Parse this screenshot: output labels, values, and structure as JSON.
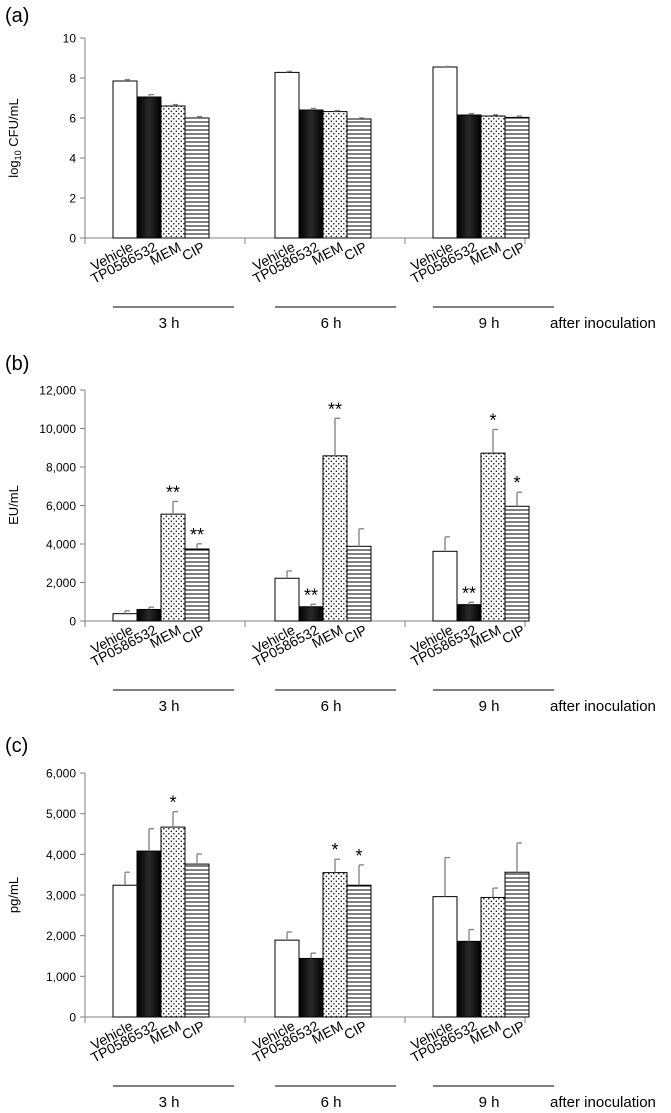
{
  "patterns": {
    "vehicle": "white",
    "tp0586532": "black",
    "mem": "dots",
    "cip": "hlines"
  },
  "colors": {
    "axis": "#808080",
    "bar_border": "#000000",
    "error_bar": "#808080"
  },
  "chart_data": [
    {
      "panel_label": "(a)",
      "type": "bar",
      "ylabel": "log10 CFU/mL",
      "ylabel_main": "log",
      "ylabel_sub": "10",
      "ylabel_tail": " CFU/mL",
      "ylim": [
        0,
        10
      ],
      "yticks": [
        0,
        2,
        4,
        6,
        8,
        10
      ],
      "ytick_labels": [
        "0",
        "2",
        "4",
        "6",
        "8",
        "10"
      ],
      "categories": [
        "3 h",
        "6 h",
        "9 h"
      ],
      "bar_labels": [
        "Vehicle",
        "TP0586532",
        "MEM",
        "CIP"
      ],
      "after_label": "after inoculation",
      "series": [
        {
          "name": "Vehicle",
          "values": [
            7.85,
            8.28,
            8.55
          ],
          "errors": [
            0.07,
            0.05,
            0.03
          ],
          "stars": [
            "",
            "",
            ""
          ]
        },
        {
          "name": "TP0586532",
          "values": [
            7.05,
            6.4,
            6.15
          ],
          "errors": [
            0.12,
            0.08,
            0.07
          ],
          "stars": [
            "",
            "",
            ""
          ]
        },
        {
          "name": "MEM",
          "values": [
            6.6,
            6.32,
            6.1
          ],
          "errors": [
            0.07,
            0.05,
            0.06
          ],
          "stars": [
            "",
            "",
            ""
          ]
        },
        {
          "name": "CIP",
          "values": [
            6.0,
            5.95,
            6.03
          ],
          "errors": [
            0.07,
            0.05,
            0.07
          ],
          "stars": [
            "",
            "",
            ""
          ]
        }
      ]
    },
    {
      "panel_label": "(b)",
      "type": "bar",
      "ylabel": "EU/mL",
      "ylabel_main": "EU/mL",
      "ylabel_sub": "",
      "ylabel_tail": "",
      "ylim": [
        0,
        12000
      ],
      "yticks": [
        0,
        2000,
        4000,
        6000,
        8000,
        10000,
        12000
      ],
      "ytick_labels": [
        "0",
        "2,000",
        "4,000",
        "6,000",
        "8,000",
        "10,000",
        "12,000"
      ],
      "categories": [
        "3 h",
        "6 h",
        "9 h"
      ],
      "bar_labels": [
        "Vehicle",
        "TP0586532",
        "MEM",
        "CIP"
      ],
      "after_label": "after inoculation",
      "series": [
        {
          "name": "Vehicle",
          "values": [
            380,
            2220,
            3620
          ],
          "errors": [
            150,
            380,
            750
          ],
          "stars": [
            "",
            "",
            ""
          ]
        },
        {
          "name": "TP0586532",
          "values": [
            600,
            740,
            850
          ],
          "errors": [
            120,
            130,
            120
          ],
          "stars": [
            "",
            "**",
            "**"
          ]
        },
        {
          "name": "MEM",
          "values": [
            5550,
            8580,
            8720
          ],
          "errors": [
            660,
            1950,
            1230
          ],
          "stars": [
            "**",
            "**",
            "*"
          ]
        },
        {
          "name": "CIP",
          "values": [
            3740,
            3880,
            5960
          ],
          "errors": [
            270,
            910,
            730
          ],
          "stars": [
            "**",
            "",
            "*"
          ]
        }
      ]
    },
    {
      "panel_label": "(c)",
      "type": "bar",
      "ylabel": "pg/mL",
      "ylabel_main": "pg/mL",
      "ylabel_sub": "",
      "ylabel_tail": "",
      "ylim": [
        0,
        6000
      ],
      "yticks": [
        0,
        1000,
        2000,
        3000,
        4000,
        5000,
        6000
      ],
      "ytick_labels": [
        "0",
        "1,000",
        "2,000",
        "3,000",
        "4,000",
        "5,000",
        "6,000"
      ],
      "categories": [
        "3 h",
        "6 h",
        "9 h"
      ],
      "bar_labels": [
        "Vehicle",
        "TP0586532",
        "MEM",
        "CIP"
      ],
      "after_label": "after inoculation",
      "series": [
        {
          "name": "Vehicle",
          "values": [
            3240,
            1890,
            2960
          ],
          "errors": [
            320,
            200,
            960
          ],
          "stars": [
            "",
            "",
            ""
          ]
        },
        {
          "name": "TP0586532",
          "values": [
            4080,
            1440,
            1860
          ],
          "errors": [
            550,
            130,
            290
          ],
          "stars": [
            "",
            "",
            ""
          ]
        },
        {
          "name": "MEM",
          "values": [
            4670,
            3550,
            2940
          ],
          "errors": [
            380,
            330,
            230
          ],
          "stars": [
            "*",
            "*",
            ""
          ]
        },
        {
          "name": "CIP",
          "values": [
            3760,
            3240,
            3560
          ],
          "errors": [
            250,
            500,
            720
          ],
          "stars": [
            "",
            "*",
            ""
          ]
        }
      ]
    }
  ]
}
